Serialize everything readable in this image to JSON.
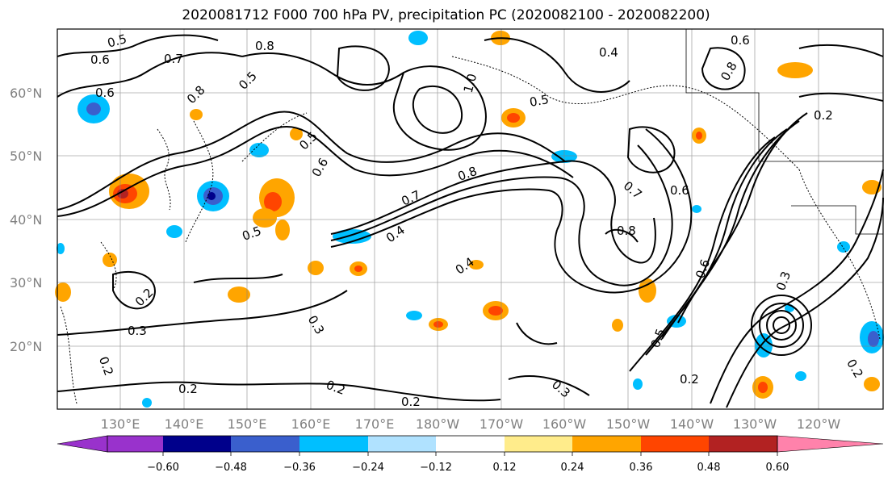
{
  "title": "2020081712 F000 700 hPa PV, precipitation PC (2020082100 - 2020082200)",
  "lat_labels": [
    "60°N",
    "50°N",
    "40°N",
    "30°N",
    "20°N"
  ],
  "lon_labels": [
    "130°E",
    "140°E",
    "150°E",
    "160°E",
    "170°E",
    "180°W",
    "170°W",
    "160°W",
    "150°W",
    "140°W",
    "130°W",
    "120°W"
  ],
  "colorbar": {
    "ticks": [
      "−0.60",
      "−0.48",
      "−0.36",
      "−0.24",
      "−0.12",
      "0.12",
      "0.24",
      "0.36",
      "0.48",
      "0.60"
    ],
    "colors": [
      "#9932cc",
      "#00008b",
      "#3a5fcd",
      "#00bfff",
      "#b0e2ff",
      "#ffffff",
      "#ffec8b",
      "#ffa500",
      "#ff4500",
      "#b22222",
      "#ff82ab"
    ]
  },
  "contour_labels": [
    "0.5",
    "0.6",
    "0.7",
    "0.8",
    "0.6",
    "0.5",
    "0.8",
    "0.5",
    "0.7",
    "0.8",
    "0.6",
    "0.5",
    "0.4",
    "0.4",
    "0.2",
    "0.3",
    "0.2",
    "0.2",
    "0.3",
    "0.2",
    "0.2",
    "0.3",
    "0.6",
    "0.7",
    "0.8",
    "0.6",
    "0.5",
    "0.2",
    "0.3",
    "0.2",
    "1.0",
    "0.8",
    "0.6",
    "0.4",
    "0.5",
    "0.2"
  ],
  "palette": {
    "contour": "#000000",
    "grid": "#808080",
    "frame": "#000000"
  }
}
